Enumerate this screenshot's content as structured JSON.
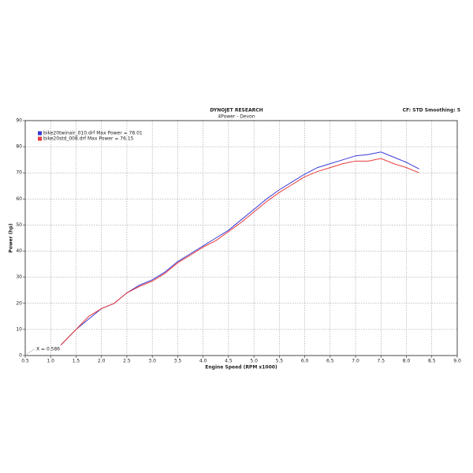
{
  "chart_data": {
    "type": "line",
    "title": "DYNOJET RESEARCH",
    "subtitle": "4Power - Devon",
    "settings_label": "CF: STD  Smoothing: 5",
    "xlabel": "Engine Speed (RPM x1000)",
    "ylabel": "Power (hp)",
    "annotation": "X = 0.586",
    "grid": true,
    "legend": "top-left",
    "xlim": [
      0.5,
      9.0
    ],
    "ylim": [
      0,
      90
    ],
    "xticks": [
      0.5,
      {
        "value": 1,
        "label": "1.0"
      },
      1.5,
      {
        "value": 2,
        "label": "2.0"
      },
      2.5,
      {
        "value": 3,
        "label": "3.0"
      },
      3.5,
      {
        "value": 4,
        "label": "4.0"
      },
      4.5,
      {
        "value": 5,
        "label": "5.0"
      },
      5.5,
      {
        "value": 6,
        "label": "6.0"
      },
      6.5,
      {
        "value": 7,
        "label": "7.0"
      },
      7.5,
      {
        "value": 8,
        "label": "8.0"
      },
      8.5,
      {
        "value": 9,
        "label": "9.0"
      }
    ],
    "yticks": [
      0,
      10,
      20,
      30,
      40,
      50,
      60,
      70,
      80,
      90
    ],
    "x": [
      1.2,
      1.5,
      1.75,
      2.0,
      2.25,
      2.5,
      2.75,
      3.0,
      3.25,
      3.5,
      3.75,
      4.0,
      4.25,
      4.5,
      4.75,
      5.0,
      5.25,
      5.5,
      5.75,
      6.0,
      6.25,
      6.5,
      6.75,
      7.0,
      7.25,
      7.5,
      7.75,
      8.0,
      8.25
    ],
    "series": [
      {
        "name": "bike20twinair_010.drf Max Power = 78.01",
        "color": "#3a3ad8",
        "values": [
          4,
          10,
          14,
          18,
          20,
          24,
          27,
          29,
          32,
          36,
          39,
          42,
          45,
          48,
          52,
          56,
          60,
          63.5,
          66.5,
          69.5,
          72,
          73.5,
          75,
          76.5,
          77,
          78,
          76,
          74,
          71.5
        ]
      },
      {
        "name": "bike20std_008.drf Max Power = 76.15",
        "color": "#e83a3a",
        "values": [
          4,
          10,
          15,
          18,
          20,
          24,
          26.5,
          28.5,
          31.5,
          35.5,
          38.5,
          41.5,
          44,
          47.5,
          51,
          55,
          59,
          62.5,
          65.5,
          68.5,
          70.5,
          72,
          73.5,
          74.5,
          74.5,
          75.5,
          73.5,
          72,
          70
        ]
      }
    ]
  }
}
